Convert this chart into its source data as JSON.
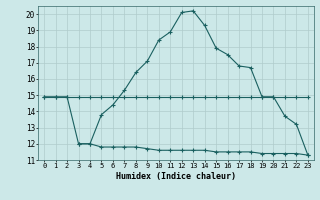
{
  "title": "",
  "xlabel": "Humidex (Indice chaleur)",
  "background_color": "#cce8e8",
  "grid_color": "#b0cccc",
  "line_color": "#1a6060",
  "xlim": [
    -0.5,
    23.5
  ],
  "ylim": [
    11,
    20.5
  ],
  "yticks": [
    11,
    12,
    13,
    14,
    15,
    16,
    17,
    18,
    19,
    20
  ],
  "xticks": [
    0,
    1,
    2,
    3,
    4,
    5,
    6,
    7,
    8,
    9,
    10,
    11,
    12,
    13,
    14,
    15,
    16,
    17,
    18,
    19,
    20,
    21,
    22,
    23
  ],
  "xtick_labels": [
    "0",
    "1",
    "2",
    "3",
    "4",
    "5",
    "6",
    "7",
    "8",
    "9",
    "10",
    "11",
    "12",
    "13",
    "14",
    "15",
    "16",
    "17",
    "18",
    "19",
    "20",
    "21",
    "22",
    "23"
  ],
  "series_main_x": [
    0,
    1,
    2,
    3,
    4,
    5,
    6,
    7,
    8,
    9,
    10,
    11,
    12,
    13,
    14,
    15,
    16,
    17,
    18,
    19,
    20,
    21,
    22,
    23
  ],
  "series_main_y": [
    14.9,
    14.9,
    14.9,
    12.0,
    12.0,
    13.8,
    14.4,
    15.3,
    16.4,
    17.1,
    18.4,
    18.9,
    20.1,
    20.2,
    19.3,
    17.9,
    17.5,
    16.8,
    16.7,
    14.9,
    14.9,
    13.7,
    13.2,
    11.3
  ],
  "series_flat_x": [
    0,
    1,
    2,
    3,
    4,
    5,
    6,
    7,
    8,
    9,
    10,
    11,
    12,
    13,
    14,
    15,
    16,
    17,
    18,
    19,
    20,
    21,
    22,
    23
  ],
  "series_flat_y": [
    14.9,
    14.9,
    14.9,
    14.9,
    14.9,
    14.9,
    14.9,
    14.9,
    14.9,
    14.9,
    14.9,
    14.9,
    14.9,
    14.9,
    14.9,
    14.9,
    14.9,
    14.9,
    14.9,
    14.9,
    14.9,
    14.9,
    14.9,
    14.9
  ],
  "series_min_x": [
    3,
    4,
    5,
    6,
    7,
    8,
    9,
    10,
    11,
    12,
    13,
    14,
    15,
    16,
    17,
    18,
    19,
    20,
    21,
    22,
    23
  ],
  "series_min_y": [
    12.0,
    12.0,
    11.8,
    11.8,
    11.8,
    11.8,
    11.7,
    11.6,
    11.6,
    11.6,
    11.6,
    11.6,
    11.5,
    11.5,
    11.5,
    11.5,
    11.4,
    11.4,
    11.4,
    11.4,
    11.3
  ]
}
